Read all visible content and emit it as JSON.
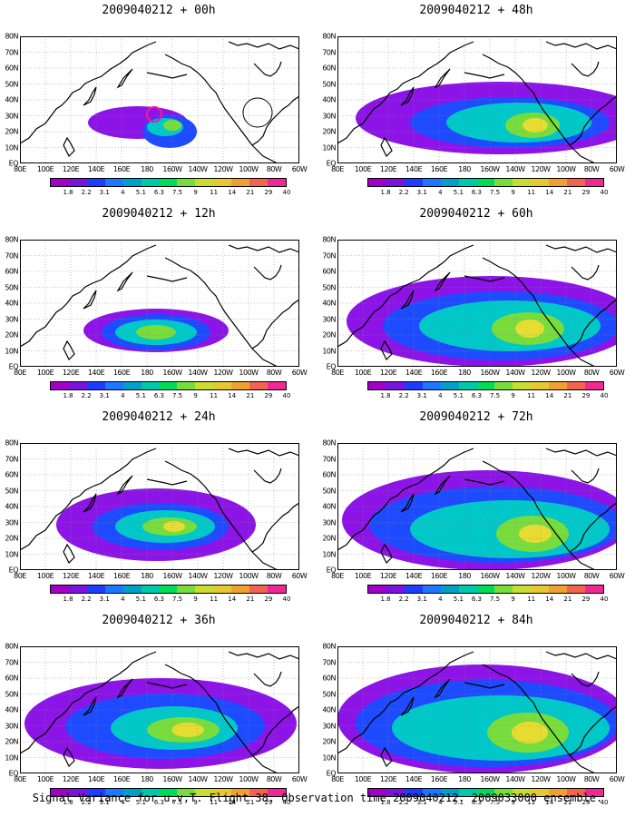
{
  "panels": [
    {
      "title": "2009040212 + 00h",
      "lead": "00h",
      "blobs": [
        [
          130,
          95,
          55,
          18,
          "#8c14e6"
        ],
        [
          165,
          105,
          30,
          18,
          "#1e4bff"
        ],
        [
          160,
          100,
          20,
          10,
          "#00c8c8"
        ],
        [
          168,
          98,
          10,
          6,
          "#78dc3c"
        ]
      ]
    },
    {
      "title": "2009040212 + 48h",
      "lead": "48h",
      "blobs": [
        [
          180,
          90,
          160,
          40,
          "#8c14e6"
        ],
        [
          190,
          95,
          110,
          28,
          "#1e4bff"
        ],
        [
          200,
          95,
          80,
          22,
          "#00c8c8"
        ],
        [
          215,
          98,
          30,
          14,
          "#78dc3c"
        ],
        [
          218,
          98,
          14,
          8,
          "#e6dc32"
        ]
      ]
    },
    {
      "title": "2009040212 + 12h",
      "lead": "12h",
      "blobs": [
        [
          150,
          100,
          80,
          24,
          "#8c14e6"
        ],
        [
          150,
          102,
          60,
          20,
          "#1e4bff"
        ],
        [
          150,
          102,
          45,
          14,
          "#00c8c8"
        ],
        [
          150,
          102,
          22,
          8,
          "#78dc3c"
        ]
      ]
    },
    {
      "title": "2009040212 + 60h",
      "lead": "60h",
      "blobs": [
        [
          170,
          90,
          160,
          50,
          "#8c14e6"
        ],
        [
          180,
          95,
          130,
          38,
          "#1e4bff"
        ],
        [
          190,
          95,
          100,
          28,
          "#00c8c8"
        ],
        [
          210,
          98,
          40,
          18,
          "#78dc3c"
        ],
        [
          212,
          98,
          16,
          10,
          "#e6dc32"
        ]
      ]
    },
    {
      "title": "2009040212 + 24h",
      "lead": "24h",
      "blobs": [
        [
          150,
          90,
          110,
          40,
          "#8c14e6"
        ],
        [
          155,
          92,
          75,
          26,
          "#1e4bff"
        ],
        [
          160,
          92,
          55,
          18,
          "#00c8c8"
        ],
        [
          165,
          92,
          30,
          10,
          "#78dc3c"
        ],
        [
          170,
          92,
          12,
          6,
          "#e6dc32"
        ]
      ]
    },
    {
      "title": "2009040212 + 72h",
      "lead": "72h",
      "blobs": [
        [
          165,
          85,
          160,
          55,
          "#8c14e6"
        ],
        [
          175,
          90,
          140,
          42,
          "#1e4bff"
        ],
        [
          190,
          95,
          110,
          32,
          "#00c8c8"
        ],
        [
          215,
          100,
          40,
          20,
          "#78dc3c"
        ],
        [
          218,
          100,
          18,
          10,
          "#e6dc32"
        ]
      ]
    },
    {
      "title": "2009040212 + 36h",
      "lead": "36h",
      "blobs": [
        [
          155,
          85,
          150,
          50,
          "#8c14e6"
        ],
        [
          160,
          88,
          110,
          36,
          "#1e4bff"
        ],
        [
          170,
          90,
          70,
          24,
          "#00c8c8"
        ],
        [
          180,
          92,
          40,
          14,
          "#78dc3c"
        ],
        [
          185,
          92,
          18,
          8,
          "#e6dc32"
        ]
      ]
    },
    {
      "title": "2009040212 + 84h",
      "lead": "84h",
      "blobs": [
        [
          160,
          80,
          160,
          60,
          "#8c14e6"
        ],
        [
          165,
          85,
          145,
          48,
          "#1e4bff"
        ],
        [
          180,
          90,
          120,
          36,
          "#00c8c8"
        ],
        [
          210,
          95,
          45,
          22,
          "#78dc3c"
        ],
        [
          212,
          95,
          20,
          12,
          "#e6dc32"
        ]
      ]
    }
  ],
  "y_labels": [
    "80N",
    "70N",
    "60N",
    "50N",
    "40N",
    "30N",
    "20N",
    "10N",
    "EQ"
  ],
  "x_labels": [
    "80E",
    "100E",
    "120E",
    "140E",
    "160E",
    "180",
    "160W",
    "140W",
    "120W",
    "100W",
    "80W",
    "60W"
  ],
  "colorbar": {
    "labels": [
      "1.8",
      "2.2",
      "3.1",
      "4",
      "5.1",
      "6.3",
      "7.5",
      "9",
      "11",
      "14",
      "21",
      "29",
      "40"
    ],
    "colors": [
      "#a000c8",
      "#7814dc",
      "#1e3cff",
      "#1e78ff",
      "#00a0c8",
      "#00c8aa",
      "#00dc5a",
      "#78dc3c",
      "#c8dc32",
      "#e6c832",
      "#f0a032",
      "#f06450",
      "#f02896"
    ]
  },
  "footer": "Signal Variance for u,v,T. Flight 38. Observation time 2009040212. 2009033000 ensemble."
}
